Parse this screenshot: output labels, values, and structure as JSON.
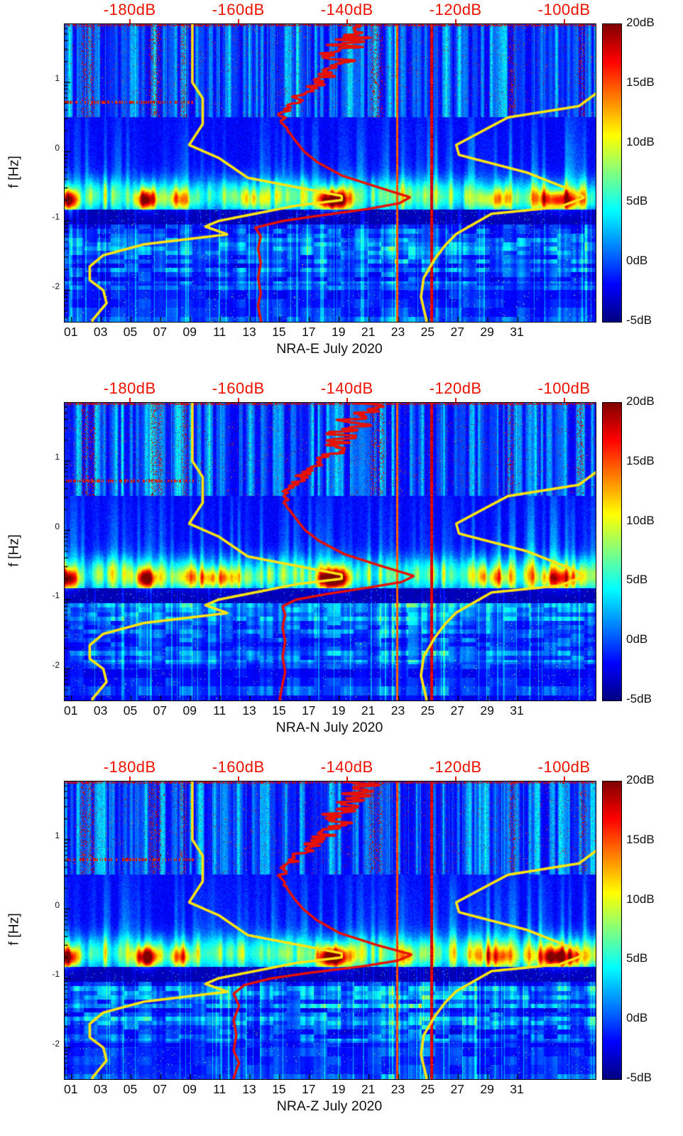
{
  "shared": {
    "ylabel": "f [Hz]",
    "y_tick_base": "10",
    "y_tick_exponents": [
      1,
      0,
      -1,
      -2
    ],
    "x_ticks": [
      {
        "label": "01",
        "day": 1
      },
      {
        "label": "03",
        "day": 3
      },
      {
        "label": "05",
        "day": 5
      },
      {
        "label": "07",
        "day": 7
      },
      {
        "label": "09",
        "day": 9
      },
      {
        "label": "11",
        "day": 11
      },
      {
        "label": "13",
        "day": 13
      },
      {
        "label": "15",
        "day": 15
      },
      {
        "label": "17",
        "day": 17
      },
      {
        "label": "19",
        "day": 19
      },
      {
        "label": "21",
        "day": 21
      },
      {
        "label": "23",
        "day": 23
      },
      {
        "label": "25",
        "day": 25
      },
      {
        "label": "27",
        "day": 27
      },
      {
        "label": "29",
        "day": 29
      },
      {
        "label": "31",
        "day": 31
      }
    ],
    "top_axis": {
      "labels": [
        "-180dB",
        "-160dB",
        "-140dB",
        "-120dB",
        "-100dB"
      ],
      "values": [
        -180,
        -160,
        -140,
        -120,
        -100
      ],
      "color": "#ee1100"
    },
    "colorbar": {
      "labels": [
        "20dB",
        "15dB",
        "10dB",
        "5dB",
        "0dB",
        "-5dB"
      ],
      "values": [
        20,
        15,
        10,
        5,
        0,
        -5
      ],
      "clim": [
        -5,
        20
      ],
      "colormap": "jet"
    },
    "axes": {
      "freq_range_hz": [
        0.0035,
        69
      ],
      "day_range": [
        0.5,
        36.3
      ],
      "y_scale": "log",
      "power_axis_db_range": [
        -190,
        -95
      ]
    },
    "noise_models": {
      "nlnm_db_by_freq": [
        [
          69,
          -168.6
        ],
        [
          10,
          -168.6
        ],
        [
          5.88,
          -166.7
        ],
        [
          2.5,
          -166.7
        ],
        [
          1.25,
          -169.2
        ],
        [
          0.81,
          -163.7
        ],
        [
          0.42,
          -158.4
        ],
        [
          0.23,
          -141.1
        ],
        [
          0.2,
          -141.1
        ],
        [
          0.167,
          -149.4
        ],
        [
          0.1,
          -163.8
        ],
        [
          0.083,
          -166.2
        ],
        [
          0.064,
          -162.1
        ],
        [
          0.046,
          -177.5
        ],
        [
          0.032,
          -185.0
        ],
        [
          0.022,
          -187.5
        ],
        [
          0.014,
          -187.5
        ],
        [
          0.01,
          -185.0
        ],
        [
          0.0065,
          -184.4
        ],
        [
          0.0037,
          -187.0
        ]
      ],
      "nhnm_db_by_freq": [
        [
          69,
          -91.5
        ],
        [
          10,
          -91.5
        ],
        [
          4.55,
          -97.4
        ],
        [
          3.12,
          -110.5
        ],
        [
          1.25,
          -120.0
        ],
        [
          0.9,
          -119.5
        ],
        [
          0.5,
          -107.0
        ],
        [
          0.263,
          -98.0
        ],
        [
          0.217,
          -96.5
        ],
        [
          0.159,
          -101.0
        ],
        [
          0.127,
          -113.5
        ],
        [
          0.065,
          -120.0
        ],
        [
          0.045,
          -122.0
        ],
        [
          0.028,
          -124.0
        ],
        [
          0.015,
          -126.0
        ],
        [
          0.008,
          -126.5
        ],
        [
          0.0037,
          -125.5
        ]
      ]
    },
    "colors": {
      "yellow_curve": "#ffe412",
      "red_curve": "#e81000",
      "axis_text": "#111111"
    }
  },
  "chart_data": [
    {
      "type": "heatmap",
      "xlabel": "NRA-E July 2020",
      "station_psd_db_by_freq": [
        [
          69,
          -137
        ],
        [
          40,
          -139
        ],
        [
          25,
          -141
        ],
        [
          15,
          -143
        ],
        [
          9,
          -146
        ],
        [
          6,
          -149
        ],
        [
          4,
          -151.5
        ],
        [
          3,
          -152
        ],
        [
          2,
          -151
        ],
        [
          1.4,
          -149.5
        ],
        [
          1,
          -148
        ],
        [
          0.7,
          -145.5
        ],
        [
          0.45,
          -141
        ],
        [
          0.3,
          -134
        ],
        [
          0.22,
          -128.5
        ],
        [
          0.18,
          -130.5
        ],
        [
          0.15,
          -136
        ],
        [
          0.12,
          -145
        ],
        [
          0.1,
          -152
        ],
        [
          0.08,
          -157
        ],
        [
          0.06,
          -156
        ],
        [
          0.04,
          -156.5
        ],
        [
          0.025,
          -156
        ],
        [
          0.015,
          -156.5
        ],
        [
          0.009,
          -156
        ],
        [
          0.006,
          -156.5
        ],
        [
          0.0037,
          -156
        ]
      ],
      "heat": {
        "seed": 11,
        "hotspots": [
          [
            0.8,
            17,
            0.45
          ],
          [
            6,
            16,
            0.5
          ],
          [
            18.6,
            21,
            0.7
          ],
          [
            33.8,
            14,
            1.1
          ],
          [
            8.3,
            8,
            0.6
          ],
          [
            13.2,
            5,
            0.8
          ],
          [
            29.5,
            7,
            0.9
          ]
        ],
        "red_lines": [
          [
            25.2,
            1.0
          ],
          [
            22.9,
            0.5
          ]
        ],
        "speckle_columns": [
          1.9,
          2.3,
          6.4,
          6.8,
          8.5,
          21.3,
          21.7,
          30.6,
          35.3
        ],
        "dash_rows": true,
        "low_gain": 1.0
      }
    },
    {
      "type": "heatmap",
      "xlabel": "NRA-N July 2020",
      "station_psd_db_by_freq": [
        [
          69,
          -136.5
        ],
        [
          40,
          -138.5
        ],
        [
          25,
          -140.5
        ],
        [
          15,
          -142.5
        ],
        [
          9,
          -145.5
        ],
        [
          6,
          -148.5
        ],
        [
          4,
          -151
        ],
        [
          3,
          -151.8
        ],
        [
          2,
          -150.8
        ],
        [
          1.4,
          -149.3
        ],
        [
          1,
          -147.8
        ],
        [
          0.7,
          -145.2
        ],
        [
          0.45,
          -140.5
        ],
        [
          0.3,
          -133.5
        ],
        [
          0.22,
          -127.8
        ],
        [
          0.18,
          -130
        ],
        [
          0.15,
          -136
        ],
        [
          0.12,
          -144
        ],
        [
          0.1,
          -149.5
        ],
        [
          0.08,
          -152
        ],
        [
          0.06,
          -151.5
        ],
        [
          0.04,
          -152
        ],
        [
          0.025,
          -151.5
        ],
        [
          0.015,
          -152
        ],
        [
          0.009,
          -151.5
        ],
        [
          0.006,
          -152
        ],
        [
          0.0037,
          -152.5
        ]
      ],
      "heat": {
        "seed": 23,
        "hotspots": [
          [
            0.8,
            15,
            0.45
          ],
          [
            6,
            15,
            0.5
          ],
          [
            18.6,
            21,
            0.7
          ],
          [
            10.5,
            8,
            1.8
          ],
          [
            33.8,
            10,
            1.0
          ],
          [
            29.5,
            6,
            0.9
          ]
        ],
        "red_lines": [
          [
            25.2,
            1.0
          ],
          [
            22.9,
            0.45
          ]
        ],
        "speckle_columns": [
          1.9,
          2.4,
          6.5,
          6.9,
          8.6,
          21.3,
          21.8,
          30.5,
          35.2
        ],
        "dash_rows": true,
        "low_gain": 1.0
      }
    },
    {
      "type": "heatmap",
      "xlabel": "NRA-Z July 2020",
      "station_psd_db_by_freq": [
        [
          69,
          -136.8
        ],
        [
          40,
          -139
        ],
        [
          25,
          -141
        ],
        [
          15,
          -143
        ],
        [
          9,
          -146
        ],
        [
          6,
          -149
        ],
        [
          4,
          -151.5
        ],
        [
          3,
          -152.2
        ],
        [
          2,
          -151.2
        ],
        [
          1.4,
          -149.8
        ],
        [
          1,
          -148.2
        ],
        [
          0.7,
          -145.8
        ],
        [
          0.45,
          -141.5
        ],
        [
          0.3,
          -134.5
        ],
        [
          0.22,
          -128.2
        ],
        [
          0.18,
          -130.8
        ],
        [
          0.15,
          -137
        ],
        [
          0.12,
          -147
        ],
        [
          0.1,
          -154
        ],
        [
          0.08,
          -159
        ],
        [
          0.06,
          -161
        ],
        [
          0.04,
          -160
        ],
        [
          0.025,
          -161
        ],
        [
          0.015,
          -160.5
        ],
        [
          0.009,
          -161
        ],
        [
          0.006,
          -160
        ],
        [
          0.0037,
          -161
        ]
      ],
      "heat": {
        "seed": 37,
        "hotspots": [
          [
            0.8,
            16,
            0.45
          ],
          [
            6,
            18,
            0.5
          ],
          [
            18.6,
            21,
            0.7
          ],
          [
            33.8,
            15,
            1.1
          ],
          [
            8.3,
            9,
            0.6
          ],
          [
            23.5,
            7,
            0.4
          ],
          [
            29.5,
            7,
            0.9
          ]
        ],
        "red_lines": [
          [
            25.2,
            1.0
          ],
          [
            22.9,
            0.55
          ]
        ],
        "speckle_columns": [
          1.8,
          2.3,
          6.4,
          6.8,
          8.5,
          21.2,
          21.7,
          30.6,
          35.4
        ],
        "dash_rows": true,
        "low_gain": 1.2
      }
    }
  ]
}
